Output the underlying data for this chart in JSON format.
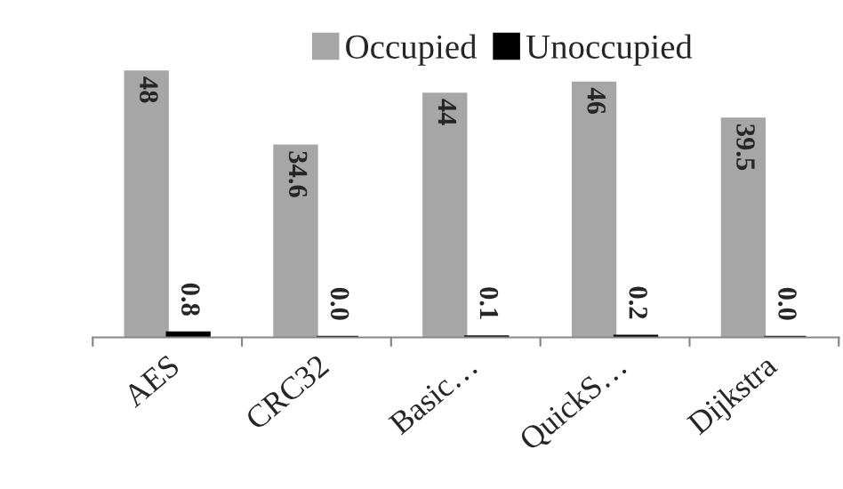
{
  "chart_data": {
    "type": "bar",
    "categories": [
      "AES",
      "CRC32",
      "Basic…",
      "QuickS…",
      "Dijkstra"
    ],
    "series": [
      {
        "name": "Occupied",
        "color": "#a6a6a6",
        "values": [
          48,
          34.6,
          44,
          46,
          39.5
        ],
        "value_labels": [
          "48",
          "34.6",
          "44",
          "46",
          "39.5"
        ]
      },
      {
        "name": "Unoccupied",
        "color": "#000000",
        "values": [
          0.8,
          0.0,
          0.1,
          0.2,
          0.0
        ],
        "value_labels": [
          "0.8",
          "0.0",
          "0.1",
          "0.2",
          "0.0"
        ]
      }
    ],
    "legend": "top",
    "grid": false
  }
}
